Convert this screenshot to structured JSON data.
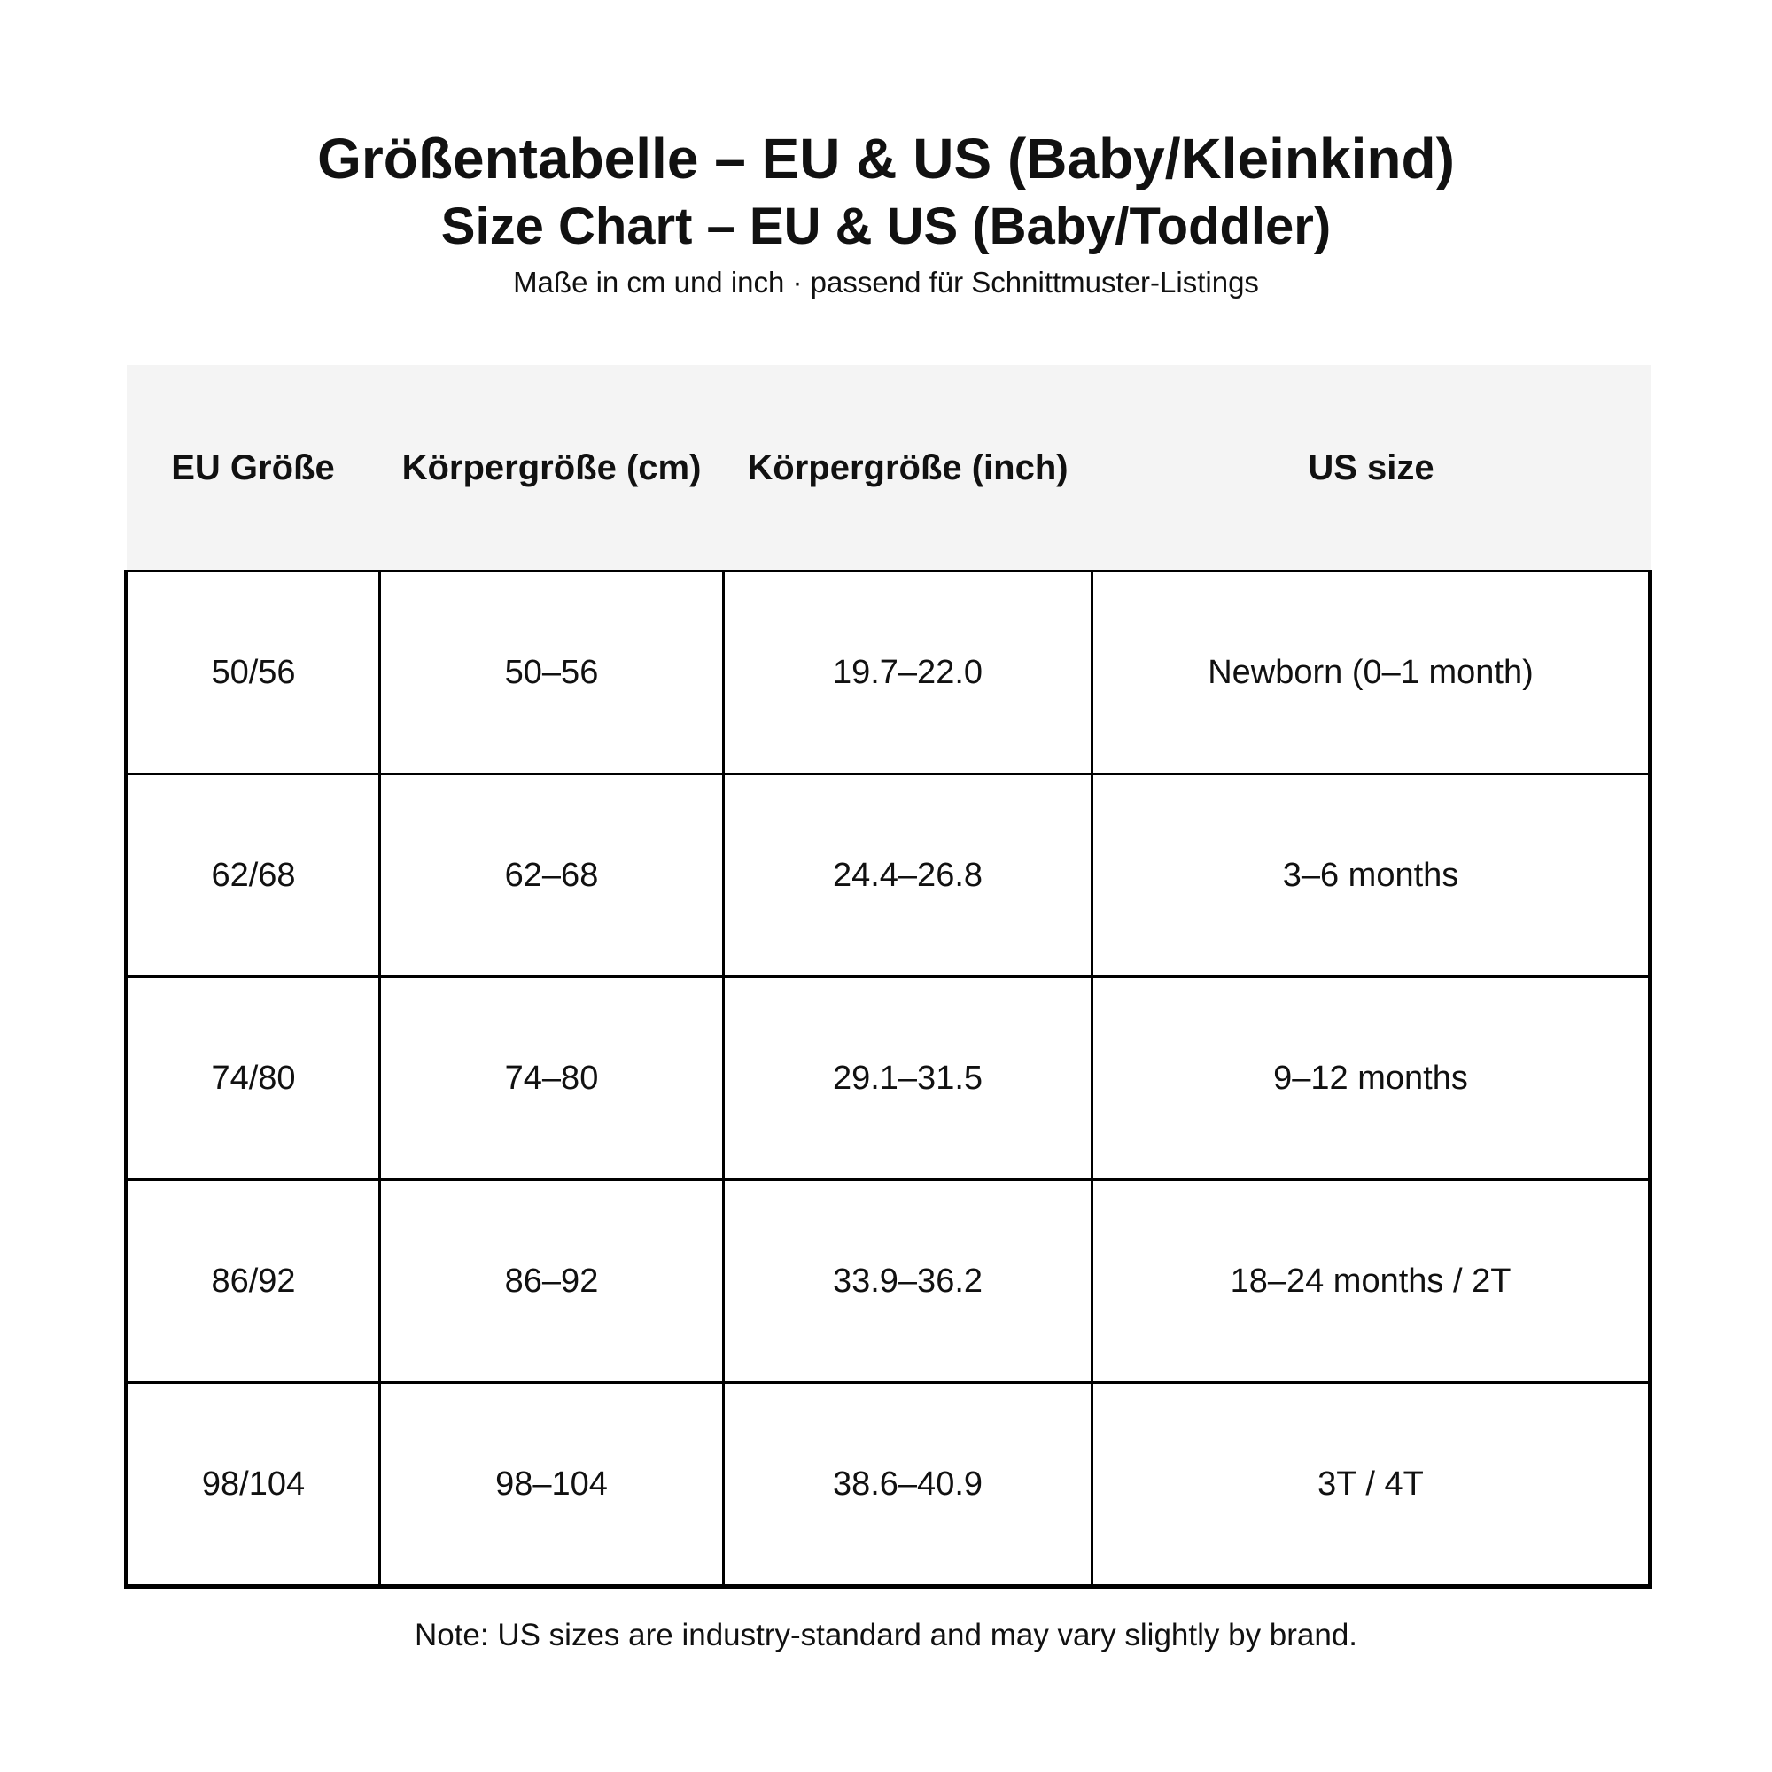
{
  "header": {
    "title": "Größentabelle – EU & US (Baby/Kleinkind)",
    "subtitle": "Size Chart – EU & US (Baby/Toddler)",
    "caption": "Maße in cm und inch · passend für Schnittmuster-Listings"
  },
  "table": {
    "columns": [
      "EU Größe",
      "Körpergröße (cm)",
      "Körpergröße (inch)",
      "US size"
    ],
    "rows": [
      [
        "50/56",
        "50–56",
        "19.7–22.0",
        "Newborn (0–1 month)"
      ],
      [
        "62/68",
        "62–68",
        "24.4–26.8",
        "3–6 months"
      ],
      [
        "74/80",
        "74–80",
        "29.1–31.5",
        "9–12 months"
      ],
      [
        "86/92",
        "86–92",
        "33.9–36.2",
        "18–24 months / 2T"
      ],
      [
        "98/104",
        "98–104",
        "38.6–40.9",
        "3T / 4T"
      ]
    ]
  },
  "note": "Note: US sizes are industry-standard and may vary slightly by brand."
}
